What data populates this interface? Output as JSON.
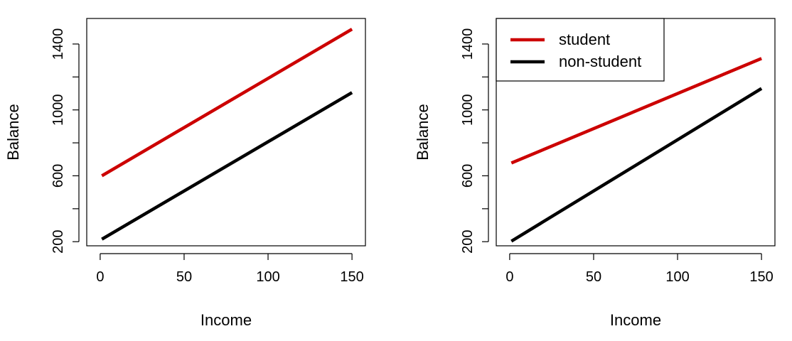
{
  "chart_data": [
    {
      "type": "line",
      "title": "",
      "xlabel": "Income",
      "ylabel": "Balance",
      "xlim": [
        -8,
        158
      ],
      "ylim": [
        175,
        1555
      ],
      "xticks": [
        0,
        50,
        100,
        150
      ],
      "yticks": [
        200,
        600,
        1000,
        1400
      ],
      "grid": false,
      "legend": null,
      "series": [
        {
          "color": "#cc0000",
          "x": [
            1,
            150
          ],
          "y": [
            600,
            1490
          ]
        },
        {
          "color": "#000000",
          "x": [
            1,
            150
          ],
          "y": [
            215,
            1105
          ]
        }
      ]
    },
    {
      "type": "line",
      "title": "",
      "xlabel": "Income",
      "ylabel": "Balance",
      "xlim": [
        -8,
        158
      ],
      "ylim": [
        175,
        1555
      ],
      "xticks": [
        0,
        50,
        100,
        150
      ],
      "yticks": [
        200,
        600,
        1000,
        1400
      ],
      "grid": false,
      "legend": {
        "position": "top-left"
      },
      "series": [
        {
          "name": "student",
          "color": "#cc0000",
          "x": [
            1,
            150
          ],
          "y": [
            678,
            1312
          ]
        },
        {
          "name": "non-student",
          "color": "#000000",
          "x": [
            1,
            150
          ],
          "y": [
            203,
            1130
          ]
        }
      ]
    }
  ]
}
